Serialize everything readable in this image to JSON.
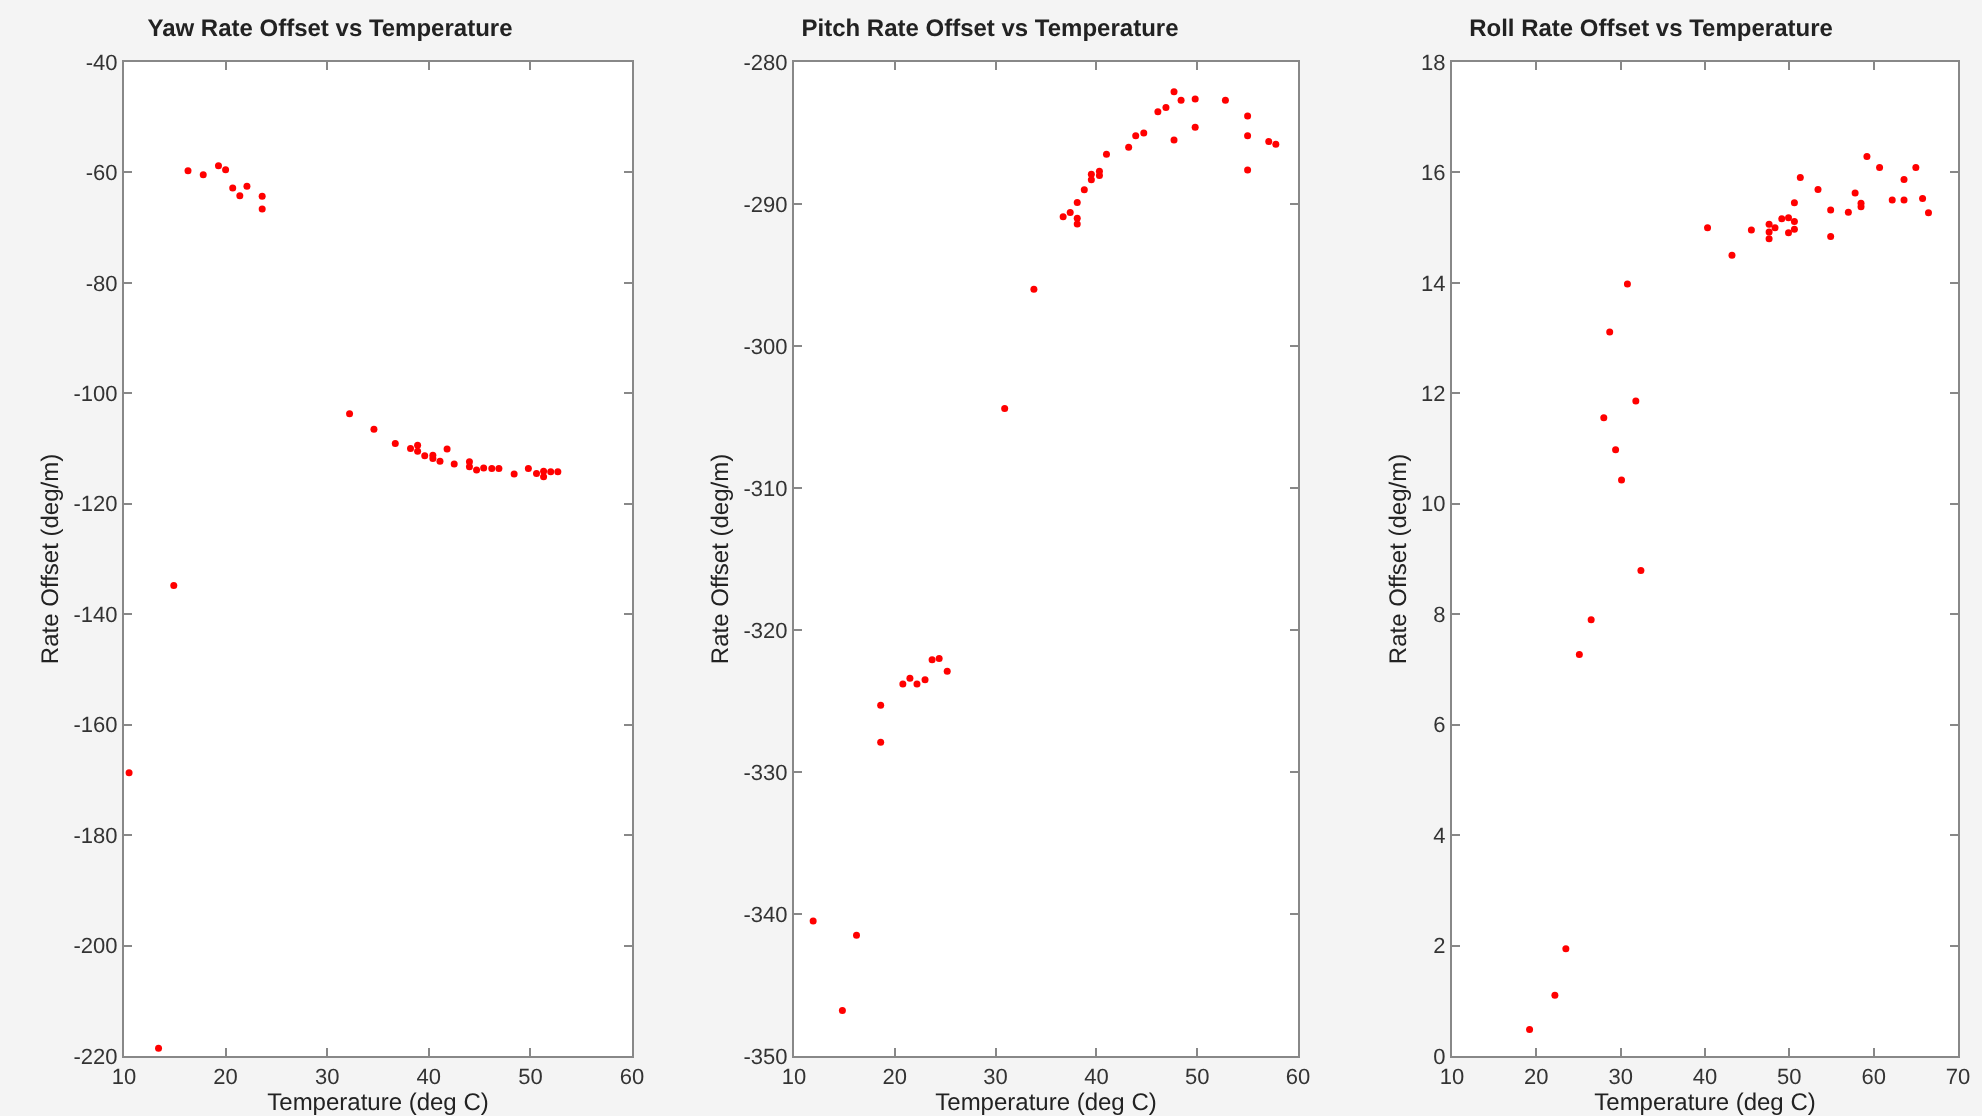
{
  "chart_data": [
    {
      "type": "scatter",
      "title": "Yaw Rate Offset vs Temperature",
      "xlabel": "Temperature (deg C)",
      "ylabel": "Rate Offset (deg/m)",
      "marker": "circle",
      "color": "#ff0000",
      "x": [
        16.3,
        17.8,
        19.3,
        20.0,
        20.7,
        21.4,
        22.1,
        23.6,
        23.6,
        32.2,
        34.6,
        36.7,
        38.2,
        38.9,
        38.9,
        39.6,
        40.4,
        40.4,
        41.1,
        41.8,
        42.5,
        44.0,
        44.0,
        44.7,
        45.4,
        46.2,
        46.9,
        48.4,
        49.8,
        50.6,
        51.3,
        51.3,
        52.0,
        52.7,
        14.9,
        10.5,
        13.4
      ],
      "values": [
        -59.7,
        -60.4,
        -58.8,
        -59.5,
        -62.8,
        -64.2,
        -62.5,
        -64.3,
        -66.6,
        -103.7,
        -106.5,
        -109.1,
        -110.0,
        -109.4,
        -110.5,
        -111.3,
        -111.2,
        -111.8,
        -112.3,
        -110.1,
        -112.8,
        -112.4,
        -113.3,
        -113.9,
        -113.5,
        -113.6,
        -113.6,
        -114.6,
        -113.6,
        -114.5,
        -114.1,
        -115.1,
        -114.2,
        -114.2,
        -134.8,
        -168.7,
        -218.6
      ],
      "xlim": [
        10,
        60
      ],
      "xticks": [
        10,
        20,
        30,
        40,
        50,
        60
      ],
      "ylim": [
        -220,
        -40
      ],
      "yticks": [
        -220,
        -200,
        -180,
        -160,
        -140,
        -120,
        -100,
        -80,
        -60,
        -40
      ]
    },
    {
      "type": "scatter",
      "title": "Pitch Rate Offset vs Temperature",
      "xlabel": "Temperature (deg C)",
      "ylabel": "Rate Offset (deg/m)",
      "marker": "circle",
      "color": "#ff0000",
      "x": [
        30.9,
        33.8,
        36.7,
        37.4,
        38.1,
        38.1,
        38.1,
        38.8,
        39.5,
        39.5,
        40.3,
        40.3,
        41.0,
        43.2,
        43.9,
        44.7,
        46.1,
        46.9,
        47.7,
        48.4,
        47.7,
        49.8,
        49.8,
        52.8,
        55.0,
        55.0,
        55.0,
        57.1,
        57.8,
        11.9,
        16.2,
        14.8,
        18.6,
        18.6,
        20.8,
        21.5,
        22.2,
        23.0,
        23.7,
        24.4,
        25.2
      ],
      "values": [
        -304.4,
        -296.0,
        -290.9,
        -290.6,
        -289.9,
        -291.0,
        -291.4,
        -289.0,
        -288.3,
        -287.9,
        -288.0,
        -287.7,
        -286.5,
        -286.0,
        -285.2,
        -285.0,
        -283.5,
        -283.2,
        -282.1,
        -282.7,
        -285.5,
        -282.6,
        -284.6,
        -282.7,
        -283.8,
        -285.2,
        -287.6,
        -285.6,
        -285.8,
        -340.5,
        -341.5,
        -346.8,
        -327.9,
        -325.3,
        -323.8,
        -323.4,
        -323.8,
        -323.5,
        -322.1,
        -322.0,
        -322.9
      ],
      "xlim": [
        10,
        60
      ],
      "xticks": [
        10,
        20,
        30,
        40,
        50,
        60
      ],
      "ylim": [
        -350,
        -280
      ],
      "yticks": [
        -350,
        -340,
        -330,
        -320,
        -310,
        -300,
        -290,
        -280
      ]
    },
    {
      "type": "scatter",
      "title": "Roll Rate Offset vs Temperature",
      "xlabel": "Temperature (deg C)",
      "ylabel": "Rate Offset (deg/m)",
      "marker": "circle",
      "color": "#ff0000",
      "x": [
        40.3,
        43.2,
        45.5,
        47.6,
        47.6,
        47.6,
        48.3,
        49.1,
        49.9,
        49.9,
        50.6,
        50.6,
        50.6,
        51.3,
        53.4,
        54.9,
        54.9,
        57.0,
        57.8,
        58.5,
        58.5,
        59.2,
        60.7,
        62.2,
        63.6,
        63.6,
        65.0,
        65.8,
        66.5,
        30.8,
        28.7,
        31.8,
        28.0,
        29.4,
        30.1,
        32.4,
        26.5,
        25.1,
        23.5,
        22.2,
        19.2
      ],
      "values": [
        15.0,
        14.5,
        14.96,
        15.06,
        14.92,
        14.8,
        15.0,
        15.16,
        15.18,
        14.91,
        15.11,
        14.97,
        15.45,
        15.91,
        15.69,
        15.32,
        14.84,
        15.28,
        15.63,
        15.44,
        15.38,
        16.29,
        16.09,
        15.5,
        15.87,
        15.5,
        16.09,
        15.53,
        15.27,
        13.98,
        13.11,
        11.86,
        11.56,
        10.98,
        10.43,
        8.79,
        7.9,
        7.27,
        1.94,
        1.1,
        0.48
      ],
      "xlim": [
        10,
        70
      ],
      "xticks": [
        10,
        20,
        30,
        40,
        50,
        60,
        70
      ],
      "ylim": [
        0,
        18
      ],
      "yticks": [
        0,
        2,
        4,
        6,
        8,
        10,
        12,
        14,
        16,
        18
      ]
    }
  ]
}
